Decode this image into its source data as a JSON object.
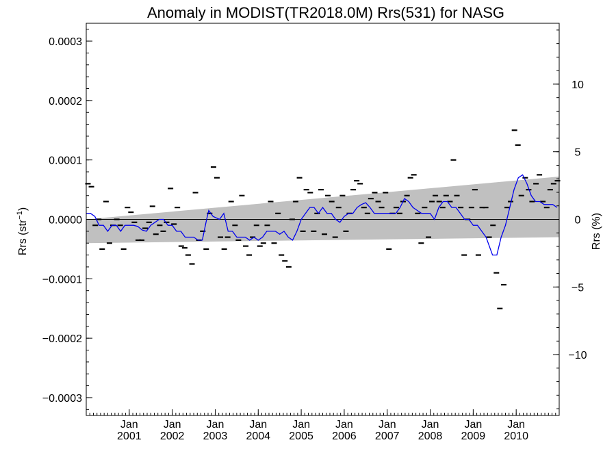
{
  "chart_data": {
    "type": "scatter",
    "title": "Anomaly in MODIST(TR2018.0M) Rrs(531) for NASG",
    "ylabel_left": "Rrs (str",
    "ylabel_left_sup": "−1",
    "ylabel_left_close": ")",
    "ylabel_right": "Rrs (%)",
    "xlim": [
      2000.0,
      2011.0
    ],
    "ylim_left": [
      -0.00033,
      0.00033
    ],
    "ylim_right": [
      -14.5,
      14.5
    ],
    "y_ticks_left": [
      -0.0003,
      -0.0002,
      -0.0001,
      0.0,
      0.0001,
      0.0002,
      0.0003
    ],
    "y_tick_labels_left": [
      "−0.0003",
      "−0.0002",
      "−0.0001",
      "0.0000",
      "0.0001",
      "0.0002",
      "0.0003"
    ],
    "y_ticks_right": [
      -10,
      -5,
      0,
      5,
      10
    ],
    "y_tick_labels_right": [
      "−10",
      "−5",
      "0",
      "5",
      "10"
    ],
    "x_ticks": [
      {
        "value": 2001.0,
        "month": "Jan",
        "year": "2001"
      },
      {
        "value": 2002.0,
        "month": "Jan",
        "year": "2002"
      },
      {
        "value": 2003.0,
        "month": "Jan",
        "year": "2003"
      },
      {
        "value": 2004.0,
        "month": "Jan",
        "year": "2004"
      },
      {
        "value": 2005.0,
        "month": "Jan",
        "year": "2005"
      },
      {
        "value": 2006.0,
        "month": "Jan",
        "year": "2006"
      },
      {
        "value": 2007.0,
        "month": "Jan",
        "year": "2007"
      },
      {
        "value": 2008.0,
        "month": "Jan",
        "year": "2008"
      },
      {
        "value": 2009.0,
        "month": "Jan",
        "year": "2009"
      },
      {
        "value": 2010.0,
        "month": "Jan",
        "year": "2010"
      }
    ],
    "colors": {
      "points": "#000000",
      "line": "#0000ee",
      "band": "#c0c0c0",
      "zero_line": "#000000"
    },
    "band": {
      "x": [
        2000.0,
        2011.0
      ],
      "upper": [
        0.0,
        7.2e-05
      ],
      "lower": [
        -4e-05,
        -3e-05
      ]
    },
    "series": [
      {
        "kind": "monthly-anomaly-markers",
        "points": [
          [
            2000.04,
            6e-05
          ],
          [
            2000.12,
            5.5e-05
          ],
          [
            2000.21,
            -1e-05
          ],
          [
            2000.29,
            0.0
          ],
          [
            2000.37,
            -5e-05
          ],
          [
            2000.46,
            3e-05
          ],
          [
            2000.54,
            -4e-05
          ],
          [
            2000.62,
            -1e-05
          ],
          [
            2000.71,
            0.0
          ],
          [
            2000.79,
            -1e-05
          ],
          [
            2000.87,
            -5e-05
          ],
          [
            2000.96,
            2e-05
          ],
          [
            2001.04,
            1.2e-05
          ],
          [
            2001.12,
            -5e-06
          ],
          [
            2001.21,
            -3.5e-05
          ],
          [
            2001.29,
            -3.5e-05
          ],
          [
            2001.37,
            -1.5e-05
          ],
          [
            2001.46,
            -5e-06
          ],
          [
            2001.54,
            2.2e-05
          ],
          [
            2001.62,
            -2.5e-05
          ],
          [
            2001.71,
            -1e-05
          ],
          [
            2001.79,
            -2e-05
          ],
          [
            2001.87,
            -5e-06
          ],
          [
            2001.96,
            5.2e-05
          ],
          [
            2002.04,
            -8e-06
          ],
          [
            2002.12,
            2e-05
          ],
          [
            2002.21,
            -4.5e-05
          ],
          [
            2002.29,
            -4.8e-05
          ],
          [
            2002.37,
            -6e-05
          ],
          [
            2002.46,
            -7.5e-05
          ],
          [
            2002.54,
            4.5e-05
          ],
          [
            2002.62,
            -3.5e-05
          ],
          [
            2002.71,
            -2e-05
          ],
          [
            2002.79,
            -5e-05
          ],
          [
            2002.87,
            1e-05
          ],
          [
            2002.96,
            8.8e-05
          ],
          [
            2003.04,
            7e-05
          ],
          [
            2003.12,
            -3e-05
          ],
          [
            2003.21,
            -5e-05
          ],
          [
            2003.29,
            -3e-05
          ],
          [
            2003.37,
            3e-05
          ],
          [
            2003.46,
            -1e-05
          ],
          [
            2003.54,
            -3.5e-05
          ],
          [
            2003.62,
            4e-05
          ],
          [
            2003.71,
            -4.5e-05
          ],
          [
            2003.79,
            -6e-05
          ],
          [
            2003.87,
            -3e-05
          ],
          [
            2003.96,
            -1e-05
          ],
          [
            2004.04,
            -4.5e-05
          ],
          [
            2004.12,
            -4e-05
          ],
          [
            2004.21,
            -1e-05
          ],
          [
            2004.29,
            3e-05
          ],
          [
            2004.37,
            -4e-05
          ],
          [
            2004.46,
            1e-05
          ],
          [
            2004.54,
            -6e-05
          ],
          [
            2004.62,
            -7e-05
          ],
          [
            2004.71,
            -8e-05
          ],
          [
            2004.79,
            0.0
          ],
          [
            2004.87,
            3e-05
          ],
          [
            2004.96,
            7e-05
          ],
          [
            2005.04,
            -2e-05
          ],
          [
            2005.12,
            5e-05
          ],
          [
            2005.21,
            4.5e-05
          ],
          [
            2005.29,
            -2e-05
          ],
          [
            2005.37,
            1e-05
          ],
          [
            2005.46,
            5e-05
          ],
          [
            2005.54,
            -2.5e-05
          ],
          [
            2005.62,
            4e-05
          ],
          [
            2005.71,
            3e-05
          ],
          [
            2005.79,
            -3e-05
          ],
          [
            2005.87,
            2e-05
          ],
          [
            2005.96,
            4e-05
          ],
          [
            2006.04,
            -2e-05
          ],
          [
            2006.12,
            1e-05
          ],
          [
            2006.21,
            5e-05
          ],
          [
            2006.29,
            6.5e-05
          ],
          [
            2006.37,
            6e-05
          ],
          [
            2006.46,
            2e-05
          ],
          [
            2006.54,
            1e-05
          ],
          [
            2006.62,
            3.5e-05
          ],
          [
            2006.71,
            4.5e-05
          ],
          [
            2006.79,
            3e-05
          ],
          [
            2006.87,
            2e-05
          ],
          [
            2006.96,
            4.5e-05
          ],
          [
            2007.04,
            -5e-05
          ],
          [
            2007.12,
            1e-05
          ],
          [
            2007.21,
            2e-05
          ],
          [
            2007.29,
            1e-05
          ],
          [
            2007.37,
            3e-05
          ],
          [
            2007.46,
            4e-05
          ],
          [
            2007.54,
            7e-05
          ],
          [
            2007.62,
            7.5e-05
          ],
          [
            2007.71,
            1e-05
          ],
          [
            2007.79,
            -4e-05
          ],
          [
            2007.87,
            2e-05
          ],
          [
            2007.96,
            -3e-05
          ],
          [
            2008.04,
            3e-05
          ],
          [
            2008.12,
            4e-05
          ],
          [
            2008.21,
            3e-05
          ],
          [
            2008.29,
            2e-05
          ],
          [
            2008.37,
            4e-05
          ],
          [
            2008.46,
            3e-05
          ],
          [
            2008.54,
            0.0001
          ],
          [
            2008.62,
            4e-05
          ],
          [
            2008.71,
            2e-05
          ],
          [
            2008.79,
            -6e-05
          ],
          [
            2008.87,
            0.0
          ],
          [
            2008.96,
            2e-05
          ],
          [
            2009.04,
            5e-05
          ],
          [
            2009.12,
            -6e-05
          ],
          [
            2009.21,
            2e-05
          ],
          [
            2009.29,
            2e-05
          ],
          [
            2009.37,
            -3e-05
          ],
          [
            2009.46,
            -1e-05
          ],
          [
            2009.54,
            -9e-05
          ],
          [
            2009.62,
            -0.00015
          ],
          [
            2009.71,
            -0.00011
          ],
          [
            2009.79,
            2e-05
          ],
          [
            2009.87,
            3e-05
          ],
          [
            2009.96,
            0.00015
          ],
          [
            2010.04,
            0.000125
          ],
          [
            2010.12,
            4e-05
          ],
          [
            2010.21,
            7e-05
          ],
          [
            2010.29,
            5e-05
          ],
          [
            2010.37,
            3e-05
          ],
          [
            2010.46,
            6e-05
          ],
          [
            2010.54,
            7.5e-05
          ],
          [
            2010.62,
            3e-05
          ],
          [
            2010.71,
            2e-05
          ],
          [
            2010.79,
            5e-05
          ],
          [
            2010.87,
            6e-05
          ],
          [
            2010.96,
            6.5e-05
          ]
        ]
      },
      {
        "kind": "smoothed-anomaly-line",
        "points": [
          [
            2000.0,
            1e-05
          ],
          [
            2000.1,
            1e-05
          ],
          [
            2000.2,
            5e-06
          ],
          [
            2000.3,
            -1e-05
          ],
          [
            2000.4,
            -1e-05
          ],
          [
            2000.5,
            -2e-05
          ],
          [
            2000.6,
            -1e-05
          ],
          [
            2000.7,
            -1e-05
          ],
          [
            2000.8,
            -2e-05
          ],
          [
            2000.9,
            -1e-05
          ],
          [
            2001.0,
            -1e-05
          ],
          [
            2001.1,
            -1e-05
          ],
          [
            2001.2,
            -1.2e-05
          ],
          [
            2001.3,
            -1.8e-05
          ],
          [
            2001.4,
            -2e-05
          ],
          [
            2001.5,
            -1e-05
          ],
          [
            2001.6,
            -5e-06
          ],
          [
            2001.7,
            0.0
          ],
          [
            2001.8,
            0.0
          ],
          [
            2001.9,
            -1e-05
          ],
          [
            2002.0,
            -1e-05
          ],
          [
            2002.1,
            -2e-05
          ],
          [
            2002.2,
            -2e-05
          ],
          [
            2002.3,
            -3e-05
          ],
          [
            2002.4,
            -3e-05
          ],
          [
            2002.5,
            -3e-05
          ],
          [
            2002.6,
            -3.5e-05
          ],
          [
            2002.7,
            -3.5e-05
          ],
          [
            2002.8,
            0.0
          ],
          [
            2002.85,
            1.5e-05
          ],
          [
            2002.95,
            5e-06
          ],
          [
            2003.1,
            0.0
          ],
          [
            2003.2,
            1e-05
          ],
          [
            2003.3,
            -2e-05
          ],
          [
            2003.4,
            -2e-05
          ],
          [
            2003.5,
            -3e-05
          ],
          [
            2003.6,
            -3e-05
          ],
          [
            2003.7,
            -3e-05
          ],
          [
            2003.8,
            -3.5e-05
          ],
          [
            2003.9,
            -3e-05
          ],
          [
            2004.0,
            -3.5e-05
          ],
          [
            2004.1,
            -3e-05
          ],
          [
            2004.2,
            -2e-05
          ],
          [
            2004.3,
            -2e-05
          ],
          [
            2004.4,
            -2e-05
          ],
          [
            2004.5,
            -2.5e-05
          ],
          [
            2004.6,
            -2e-05
          ],
          [
            2004.7,
            -3e-05
          ],
          [
            2004.8,
            -3.5e-05
          ],
          [
            2004.9,
            -2e-05
          ],
          [
            2005.0,
            0.0
          ],
          [
            2005.1,
            1e-05
          ],
          [
            2005.2,
            2e-05
          ],
          [
            2005.3,
            2e-05
          ],
          [
            2005.4,
            1e-05
          ],
          [
            2005.5,
            2e-05
          ],
          [
            2005.6,
            1e-05
          ],
          [
            2005.7,
            1e-05
          ],
          [
            2005.8,
            0.0
          ],
          [
            2005.9,
            -5e-06
          ],
          [
            2006.0,
            5e-06
          ],
          [
            2006.1,
            1e-05
          ],
          [
            2006.2,
            1e-05
          ],
          [
            2006.3,
            2e-05
          ],
          [
            2006.4,
            2.5e-05
          ],
          [
            2006.5,
            2.8e-05
          ],
          [
            2006.6,
            2e-05
          ],
          [
            2006.7,
            1e-05
          ],
          [
            2006.8,
            1e-05
          ],
          [
            2006.9,
            1e-05
          ],
          [
            2007.0,
            1e-05
          ],
          [
            2007.1,
            1e-05
          ],
          [
            2007.2,
            1e-05
          ],
          [
            2007.3,
            2e-05
          ],
          [
            2007.4,
            3.5e-05
          ],
          [
            2007.5,
            3e-05
          ],
          [
            2007.6,
            2e-05
          ],
          [
            2007.7,
            1.5e-05
          ],
          [
            2007.8,
            1e-05
          ],
          [
            2007.9,
            1e-05
          ],
          [
            2008.0,
            1e-05
          ],
          [
            2008.1,
            0.0
          ],
          [
            2008.2,
            2e-05
          ],
          [
            2008.3,
            3e-05
          ],
          [
            2008.4,
            3e-05
          ],
          [
            2008.5,
            2e-05
          ],
          [
            2008.6,
            2e-05
          ],
          [
            2008.7,
            1e-05
          ],
          [
            2008.8,
            0.0
          ],
          [
            2008.9,
            0.0
          ],
          [
            2009.0,
            -1e-05
          ],
          [
            2009.1,
            -1e-05
          ],
          [
            2009.2,
            -2e-05
          ],
          [
            2009.3,
            -3e-05
          ],
          [
            2009.35,
            -4e-05
          ],
          [
            2009.45,
            -6e-05
          ],
          [
            2009.55,
            -6e-05
          ],
          [
            2009.65,
            -3e-05
          ],
          [
            2009.75,
            -1e-05
          ],
          [
            2009.85,
            2e-05
          ],
          [
            2009.95,
            5e-05
          ],
          [
            2010.05,
            7e-05
          ],
          [
            2010.15,
            7.5e-05
          ],
          [
            2010.25,
            6e-05
          ],
          [
            2010.35,
            4e-05
          ],
          [
            2010.45,
            3e-05
          ],
          [
            2010.55,
            3e-05
          ],
          [
            2010.65,
            2.5e-05
          ],
          [
            2010.75,
            2.5e-05
          ],
          [
            2010.85,
            2.5e-05
          ],
          [
            2010.95,
            2e-05
          ]
        ]
      }
    ]
  }
}
